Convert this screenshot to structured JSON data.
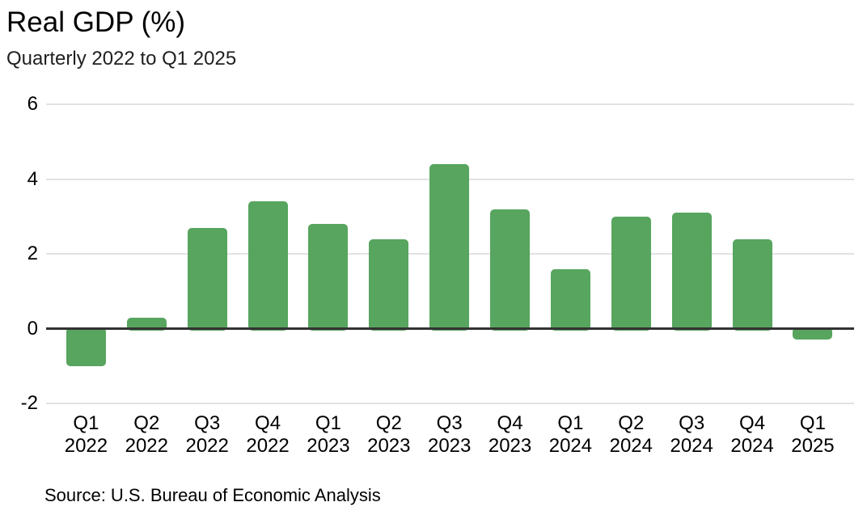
{
  "header": {
    "title": "Real GDP (%)",
    "subtitle": "Quarterly 2022 to Q1 2025"
  },
  "footer": {
    "source": "Source: U.S. Bureau of Economic Analysis"
  },
  "colors": {
    "bar": "#57a55e",
    "gridline": "#e2e2e2",
    "zero_line": "#333333",
    "text": "#000000",
    "background": "#ffffff"
  },
  "chart_data": {
    "type": "bar",
    "title": "Real GDP (%)",
    "subtitle": "Quarterly 2022 to Q1 2025",
    "source": "Source: U.S. Bureau of Economic Analysis",
    "unit": "percent",
    "categories": [
      "Q1 2022",
      "Q2 2022",
      "Q3 2022",
      "Q4 2022",
      "Q1 2023",
      "Q2 2023",
      "Q3 2023",
      "Q4 2023",
      "Q1 2024",
      "Q2 2024",
      "Q3 2024",
      "Q4 2024",
      "Q1 2025"
    ],
    "category_lines": [
      [
        "Q1",
        "2022"
      ],
      [
        "Q2",
        "2022"
      ],
      [
        "Q3",
        "2022"
      ],
      [
        "Q4",
        "2022"
      ],
      [
        "Q1",
        "2023"
      ],
      [
        "Q2",
        "2023"
      ],
      [
        "Q3",
        "2023"
      ],
      [
        "Q4",
        "2023"
      ],
      [
        "Q1",
        "2024"
      ],
      [
        "Q2",
        "2024"
      ],
      [
        "Q3",
        "2024"
      ],
      [
        "Q4",
        "2024"
      ],
      [
        "Q1",
        "2025"
      ]
    ],
    "values": [
      -1.0,
      0.3,
      2.7,
      3.4,
      2.8,
      2.4,
      4.4,
      3.2,
      1.6,
      3.0,
      3.1,
      2.4,
      -0.3
    ],
    "xlabel": "",
    "ylabel": "",
    "ylim": [
      -2,
      6
    ],
    "yticks": [
      6,
      4,
      2,
      0,
      -2
    ],
    "grid": true,
    "legend": "none",
    "bar_color": "#57a55e"
  }
}
